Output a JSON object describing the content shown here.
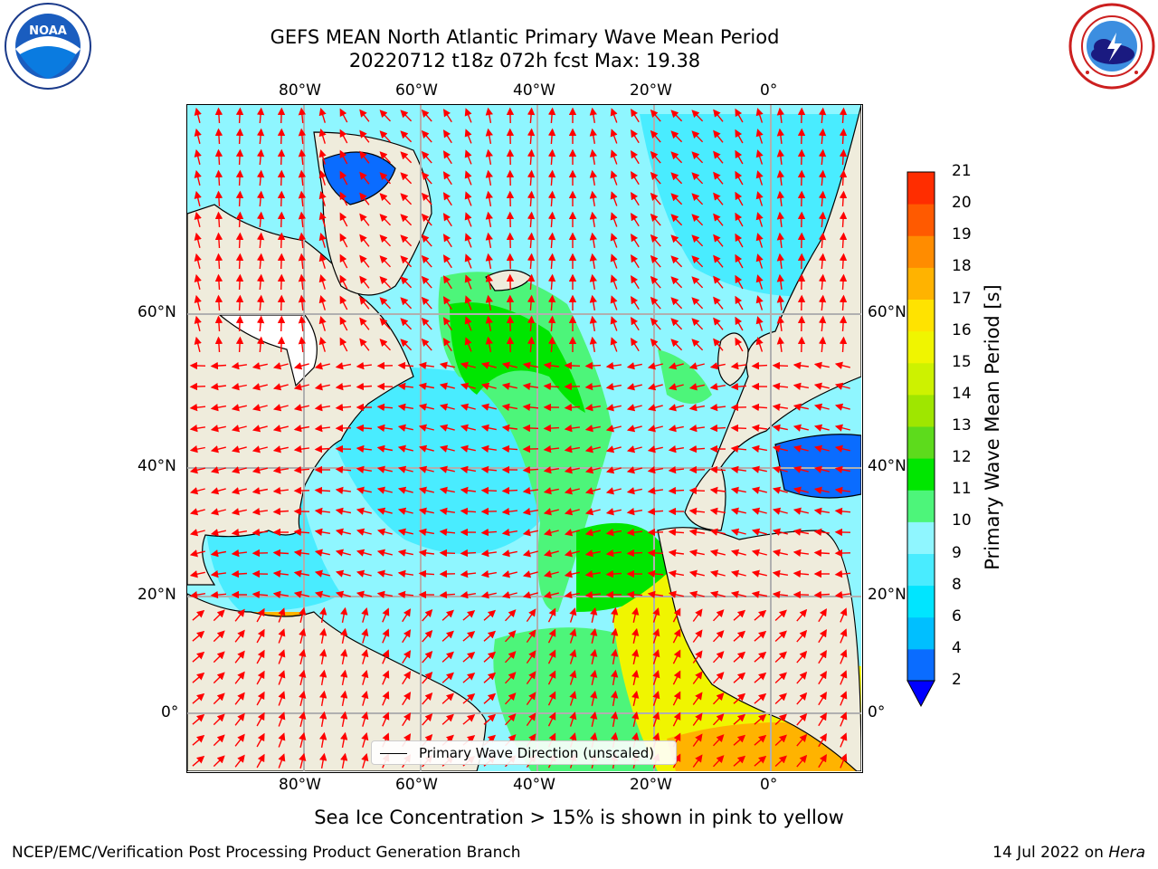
{
  "header": {
    "title_line1": "GEFS MEAN North Atlantic Primary Wave Mean Period",
    "title_line2": "20220712 t18z 072h fcst   Max: 19.38"
  },
  "logos": {
    "left": {
      "name": "noaa-logo",
      "text": "NOAA"
    },
    "right": {
      "name": "nws-logo"
    }
  },
  "map": {
    "projection": "PlateCarree",
    "extent_lon": [
      -100,
      15
    ],
    "extent_lat": [
      -8,
      79
    ],
    "lon_ticks": [
      {
        "value": -80,
        "label": "80°W"
      },
      {
        "value": -60,
        "label": "60°W"
      },
      {
        "value": -40,
        "label": "40°W"
      },
      {
        "value": -20,
        "label": "20°W"
      },
      {
        "value": 0,
        "label": "0°"
      }
    ],
    "lat_ticks": [
      {
        "value": 60,
        "label": "60°N"
      },
      {
        "value": 40,
        "label": "40°N"
      },
      {
        "value": 20,
        "label": "20°N"
      },
      {
        "value": 0,
        "label": "0°"
      }
    ],
    "gridlines": true,
    "land_color": "#efecdc",
    "arrow_color": "#ff0000",
    "legend_text": "Primary Wave Direction (unscaled)"
  },
  "colorbar": {
    "label": "Primary Wave Mean Period [s]",
    "ticks": [
      "2",
      "4",
      "6",
      "8",
      "9",
      "10",
      "11",
      "12",
      "13",
      "14",
      "15",
      "16",
      "17",
      "18",
      "19",
      "20",
      "21"
    ],
    "colors": [
      "#0a6cff",
      "#00bfff",
      "#00e5ff",
      "#49ecff",
      "#8ff6ff",
      "#4df57a",
      "#00e600",
      "#5ddb1c",
      "#9fe600",
      "#cdf200",
      "#f0f500",
      "#ffe300",
      "#ffb300",
      "#ff8c00",
      "#ff5a00",
      "#ff2d00"
    ],
    "under_color": "#0000ff"
  },
  "caption": "Sea Ice Concentration > 15% is shown in pink to yellow",
  "footer": {
    "left": "NCEP/EMC/Verification Post Processing Product Generation Branch",
    "right_date": "14 Jul 2022 on ",
    "right_machine": "Hera"
  }
}
